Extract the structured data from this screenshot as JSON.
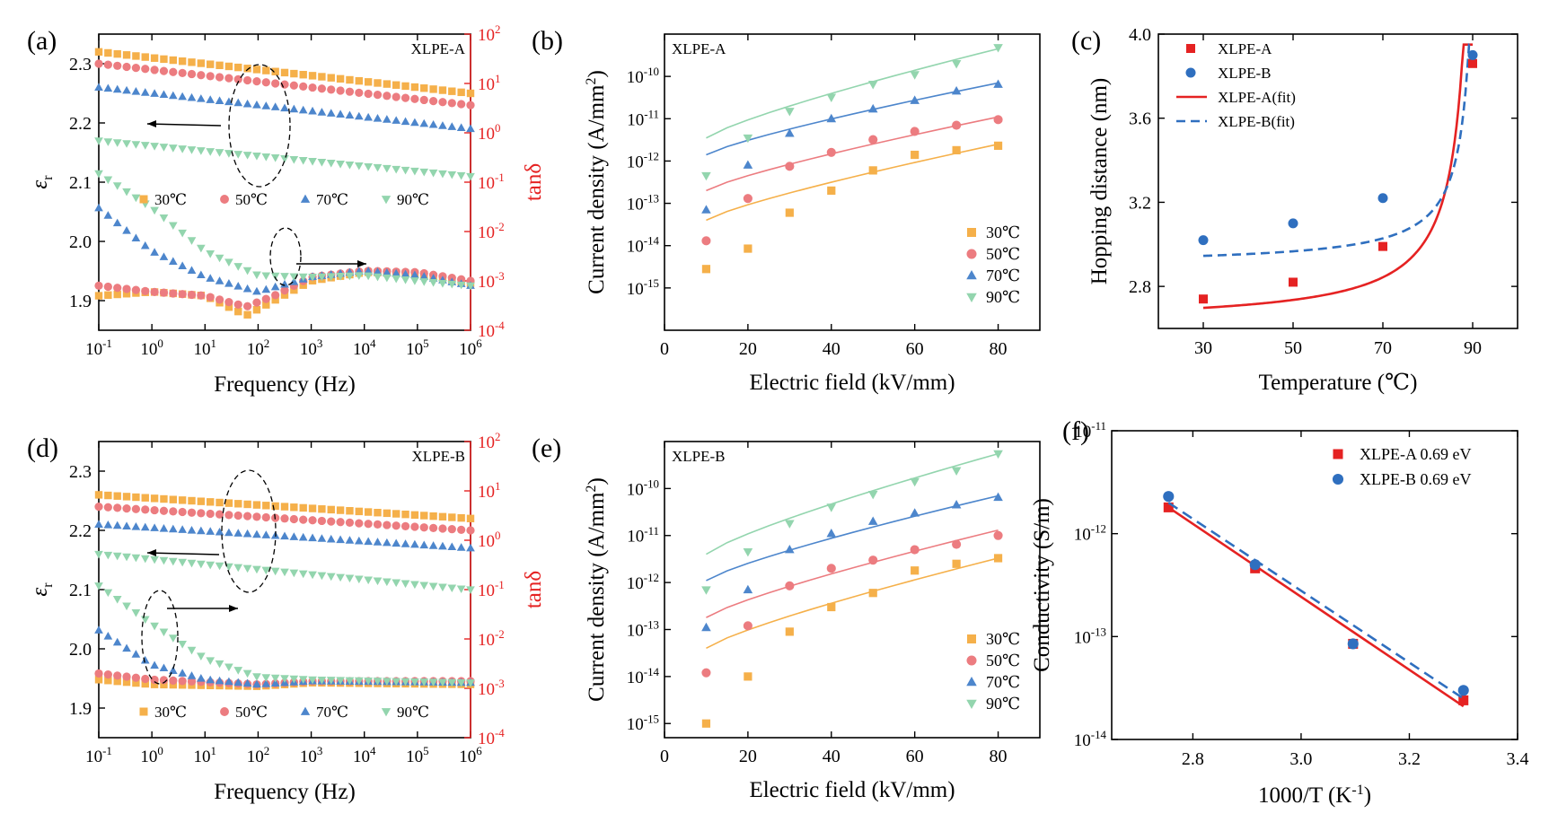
{
  "colors": {
    "c30": "#f5b04a",
    "c50": "#ec7c80",
    "c70": "#4d86cc",
    "c90": "#93d5ae",
    "red": "#e52222",
    "blue": "#2f6fbf",
    "black": "#000000"
  },
  "chart_data": [
    {
      "panel": "(a)",
      "type": "scatter",
      "inset": "XLPE-A",
      "xlabel": "Frequency (Hz)",
      "ylabel": "εr",
      "ylabel_sub": "r",
      "y2label": "tanδ",
      "xscale": "log",
      "xlim": [
        0.1,
        1000000
      ],
      "x_ticks": [
        "10-1",
        "100",
        "101",
        "102",
        "103",
        "104",
        "105",
        "106"
      ],
      "ylim": [
        1.85,
        2.35
      ],
      "y_ticks": [
        "1.9",
        "2.0",
        "2.1",
        "2.2",
        "2.3"
      ],
      "y2scale": "log",
      "y2lim": [
        0.0001,
        100
      ],
      "y2_ticks": [
        "10-4",
        "10-3",
        "10-2",
        "10-1",
        "100",
        "101",
        "102"
      ],
      "legend": [
        "30℃",
        "50℃",
        "70℃",
        "90℃"
      ],
      "eps": [
        {
          "name": "30℃",
          "start": 2.32,
          "end": 2.25
        },
        {
          "name": "50℃",
          "start": 2.3,
          "end": 2.23
        },
        {
          "name": "70℃",
          "start": 2.26,
          "end": 2.19
        },
        {
          "name": "90℃",
          "start": 2.17,
          "end": 2.11
        }
      ],
      "tan": [
        {
          "name": "30℃",
          "points": [
            [
              0.1,
              0.0005
            ],
            [
              1,
              0.0006
            ],
            [
              10,
              0.0005
            ],
            [
              60,
              0.0002
            ],
            [
              200,
              0.0004
            ],
            [
              1000,
              0.001
            ],
            [
              10000,
              0.0015
            ],
            [
              100000,
              0.0014
            ],
            [
              1000000,
              0.0009
            ]
          ]
        },
        {
          "name": "50℃",
          "points": [
            [
              0.1,
              0.0008
            ],
            [
              1,
              0.0006
            ],
            [
              10,
              0.0005
            ],
            [
              60,
              0.0003
            ],
            [
              200,
              0.0005
            ],
            [
              1000,
              0.0012
            ],
            [
              10000,
              0.0016
            ],
            [
              100000,
              0.0015
            ],
            [
              1000000,
              0.001
            ]
          ]
        },
        {
          "name": "70℃",
          "points": [
            [
              0.1,
              0.03
            ],
            [
              1,
              0.004
            ],
            [
              10,
              0.0012
            ],
            [
              100,
              0.0006
            ],
            [
              1000,
              0.0012
            ],
            [
              10000,
              0.0016
            ],
            [
              100000,
              0.0013
            ],
            [
              1000000,
              0.0008
            ]
          ]
        },
        {
          "name": "90℃",
          "points": [
            [
              0.1,
              0.15
            ],
            [
              1,
              0.03
            ],
            [
              10,
              0.004
            ],
            [
              100,
              0.0013
            ],
            [
              1000,
              0.0012
            ],
            [
              10000,
              0.0013
            ],
            [
              100000,
              0.001
            ],
            [
              1000000,
              0.0008
            ]
          ]
        }
      ]
    },
    {
      "panel": "(b)",
      "type": "scatter",
      "inset": "XLPE-A",
      "xlabel": "Electric field (kV/mm)",
      "ylabel": "Current density (A/mm2)",
      "xlim": [
        0,
        90
      ],
      "x_ticks": [
        "0",
        "20",
        "40",
        "60",
        "80"
      ],
      "yscale": "log",
      "ylim": [
        1e-16,
        1e-09
      ],
      "y_ticks": [
        "10-15",
        "10-14",
        "10-13",
        "10-12",
        "10-11",
        "10-10"
      ],
      "legend": [
        "30℃",
        "50℃",
        "70℃",
        "90℃"
      ],
      "x": [
        10,
        20,
        30,
        40,
        50,
        60,
        70,
        80
      ],
      "series": [
        {
          "name": "30℃",
          "values": [
            2.8e-15,
            8.5e-15,
            6e-14,
            2e-13,
            6e-13,
            1.4e-12,
            1.8e-12,
            2.3e-12
          ],
          "fit": [
            4e-14,
            2.5e-12
          ]
        },
        {
          "name": "50℃",
          "values": [
            1.3e-14,
            1.3e-13,
            7.5e-13,
            1.6e-12,
            3.2e-12,
            5e-12,
            7e-12,
            9.5e-12
          ],
          "fit": [
            2e-13,
            1.1e-11
          ]
        },
        {
          "name": "70℃",
          "values": [
            7e-14,
            8e-13,
            4.5e-12,
            1e-11,
            1.7e-11,
            2.7e-11,
            4.5e-11,
            6.5e-11
          ],
          "fit": [
            1.4e-12,
            7e-11
          ]
        },
        {
          "name": "90℃",
          "values": [
            4.5e-13,
            3.5e-12,
            1.5e-11,
            3.2e-11,
            6.5e-11,
            1.1e-10,
            2e-10,
            4.8e-10
          ],
          "fit": [
            3.5e-12,
            4.5e-10
          ]
        }
      ]
    },
    {
      "panel": "(c)",
      "type": "line",
      "xlabel": "Temperature (℃)",
      "ylabel": "Hopping distance (nm)",
      "xlim": [
        20,
        100
      ],
      "x_ticks": [
        "30",
        "50",
        "70",
        "90"
      ],
      "ylim": [
        2.6,
        4.0
      ],
      "y_ticks": [
        "2.8",
        "3.2",
        "3.6",
        "4.0"
      ],
      "legend": [
        "XLPE-A",
        "XLPE-B",
        "XLPE-A(fit)",
        "XLPE-B(fit)"
      ],
      "x": [
        30,
        50,
        70,
        90
      ],
      "series": [
        {
          "name": "XLPE-A",
          "values": [
            2.74,
            2.82,
            2.99,
            3.86
          ]
        },
        {
          "name": "XLPE-B",
          "values": [
            3.02,
            3.1,
            3.22,
            3.9
          ]
        }
      ]
    },
    {
      "panel": "(d)",
      "type": "scatter",
      "inset": "XLPE-B",
      "xlabel": "Frequency (Hz)",
      "ylabel": "εr",
      "ylabel_sub": "r",
      "y2label": "tanδ",
      "xscale": "log",
      "xlim": [
        0.1,
        1000000
      ],
      "x_ticks": [
        "10-1",
        "100",
        "101",
        "102",
        "103",
        "104",
        "105",
        "106"
      ],
      "ylim": [
        1.85,
        2.35
      ],
      "y_ticks": [
        "1.9",
        "2.0",
        "2.1",
        "2.2",
        "2.3"
      ],
      "y2scale": "log",
      "y2lim": [
        0.0001,
        100
      ],
      "y2_ticks": [
        "10-4",
        "10-3",
        "10-2",
        "10-1",
        "100",
        "101",
        "102"
      ],
      "legend": [
        "30℃",
        "50℃",
        "70℃",
        "90℃"
      ],
      "eps": [
        {
          "name": "30℃",
          "start": 2.26,
          "end": 2.22
        },
        {
          "name": "50℃",
          "start": 2.24,
          "end": 2.2
        },
        {
          "name": "70℃",
          "start": 2.21,
          "end": 2.17
        },
        {
          "name": "90℃",
          "start": 2.16,
          "end": 2.1
        }
      ],
      "tan": [
        {
          "name": "30℃",
          "points": [
            [
              0.1,
              0.0015
            ],
            [
              1,
              0.0012
            ],
            [
              100,
              0.0011
            ],
            [
              1000,
              0.0013
            ],
            [
              1000000,
              0.0012
            ]
          ]
        },
        {
          "name": "50℃",
          "points": [
            [
              0.1,
              0.002
            ],
            [
              1,
              0.0015
            ],
            [
              100,
              0.0012
            ],
            [
              1000,
              0.0014
            ],
            [
              1000000,
              0.0014
            ]
          ]
        },
        {
          "name": "70℃",
          "points": [
            [
              0.1,
              0.015
            ],
            [
              1,
              0.003
            ],
            [
              10,
              0.0015
            ],
            [
              100,
              0.0012
            ],
            [
              1000,
              0.0014
            ],
            [
              1000000,
              0.0013
            ]
          ]
        },
        {
          "name": "90℃",
          "points": [
            [
              0.1,
              0.12
            ],
            [
              1,
              0.02
            ],
            [
              10,
              0.004
            ],
            [
              100,
              0.0017
            ],
            [
              1000,
              0.0015
            ],
            [
              1000000,
              0.0013
            ]
          ]
        }
      ]
    },
    {
      "panel": "(e)",
      "type": "scatter",
      "inset": "XLPE-B",
      "xlabel": "Electric field (kV/mm)",
      "ylabel": "Current density (A/mm2)",
      "xlim": [
        0,
        90
      ],
      "x_ticks": [
        "0",
        "20",
        "40",
        "60",
        "80"
      ],
      "yscale": "log",
      "ylim": [
        5e-16,
        1e-09
      ],
      "y_ticks": [
        "10-15",
        "10-14",
        "10-13",
        "10-12",
        "10-11",
        "10-10"
      ],
      "legend": [
        "30℃",
        "50℃",
        "70℃",
        "90℃"
      ],
      "x": [
        10,
        20,
        30,
        40,
        50,
        60,
        70,
        80
      ],
      "series": [
        {
          "name": "30℃",
          "values": [
            1e-15,
            1e-14,
            9e-14,
            3e-13,
            6e-13,
            1.8e-12,
            2.5e-12,
            3.3e-12
          ],
          "fit": [
            4e-14,
            3.3e-12
          ]
        },
        {
          "name": "50℃",
          "values": [
            1.2e-14,
            1.2e-13,
            8.5e-13,
            2e-12,
            3e-12,
            5e-12,
            6.5e-12,
            1e-11
          ],
          "fit": [
            1.8e-13,
            1.3e-11
          ]
        },
        {
          "name": "70℃",
          "values": [
            1.1e-13,
            7e-13,
            5e-12,
            1.1e-11,
            2e-11,
            3e-11,
            4.5e-11,
            6.5e-11
          ],
          "fit": [
            1.1e-12,
            7e-11
          ]
        },
        {
          "name": "90℃",
          "values": [
            7e-13,
            4.5e-12,
            1.8e-11,
            4e-11,
            7.5e-11,
            1.4e-10,
            2.4e-10,
            5.5e-10
          ],
          "fit": [
            4e-12,
            5.5e-10
          ]
        }
      ]
    },
    {
      "panel": "(f)",
      "type": "scatter",
      "xlabel": "1000/T (K-1)",
      "ylabel": "Conductivity (S/m)",
      "xlim": [
        2.65,
        3.4
      ],
      "x_ticks": [
        "2.8",
        "3.0",
        "3.2",
        "3.4"
      ],
      "yscale": "log",
      "ylim": [
        1e-14,
        1e-11
      ],
      "y_ticks": [
        "10-14",
        "10-13",
        "10-12",
        "10-11"
      ],
      "legend": [
        "XLPE-A   0.69 eV",
        "XLPE-B   0.69 eV"
      ],
      "x": [
        2.755,
        2.915,
        3.096,
        3.3
      ],
      "series": [
        {
          "name": "XLPE-A",
          "values": [
            1.8e-12,
            4.6e-13,
            8.5e-14,
            2.4e-14
          ],
          "fit": [
            1.8e-12,
            2.1e-14
          ]
        },
        {
          "name": "XLPE-B",
          "values": [
            2.3e-12,
            5e-13,
            8.5e-14,
            3e-14
          ],
          "fit": [
            2e-12,
            2.5e-14
          ]
        }
      ]
    }
  ]
}
